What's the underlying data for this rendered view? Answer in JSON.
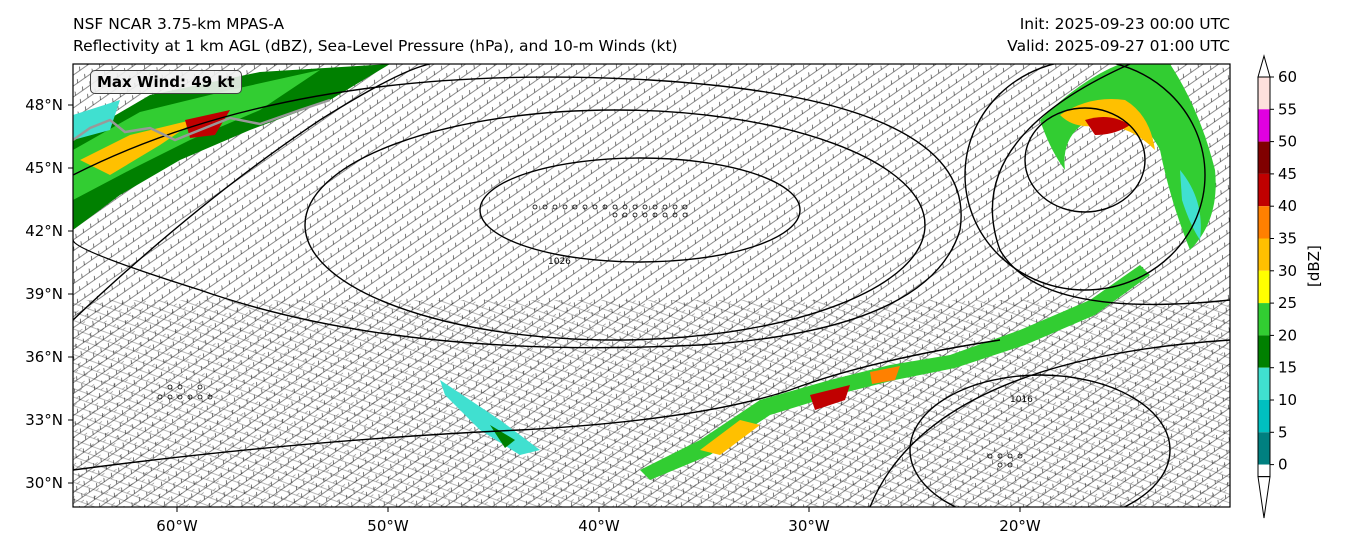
{
  "header": {
    "model": "NSF NCAR 3.75-km MPAS-A",
    "fields": "Reflectivity at 1 km AGL (dBZ), Sea-Level Pressure (hPa), and 10-m Winds (kt)",
    "init": "Init: 2025-09-23 00:00 UTC",
    "valid": "Valid: 2025-09-27 01:00 UTC"
  },
  "annotation": {
    "max_wind": "Max Wind: 49 kt"
  },
  "axes": {
    "lat_ticks": [
      "48°N",
      "45°N",
      "42°N",
      "39°N",
      "36°N",
      "33°N",
      "30°N"
    ],
    "lon_ticks": [
      "60°W",
      "50°W",
      "40°W",
      "30°W",
      "20°W"
    ]
  },
  "colorbar": {
    "label": "[dBZ]",
    "ticks": [
      "60",
      "55",
      "50",
      "45",
      "40",
      "35",
      "30",
      "25",
      "20",
      "15",
      "10",
      "5",
      "0"
    ],
    "colors": [
      "#fde0dd",
      "#e000e0",
      "#800000",
      "#c00000",
      "#ff8000",
      "#ffc000",
      "#ffff00",
      "#32cd32",
      "#008000",
      "#40e0d0",
      "#00c0c0",
      "#008080"
    ]
  },
  "isobar_labels": [
    "1026",
    "1016"
  ],
  "map_colors": {
    "land_edge": "#000000",
    "coast": "#999999"
  }
}
